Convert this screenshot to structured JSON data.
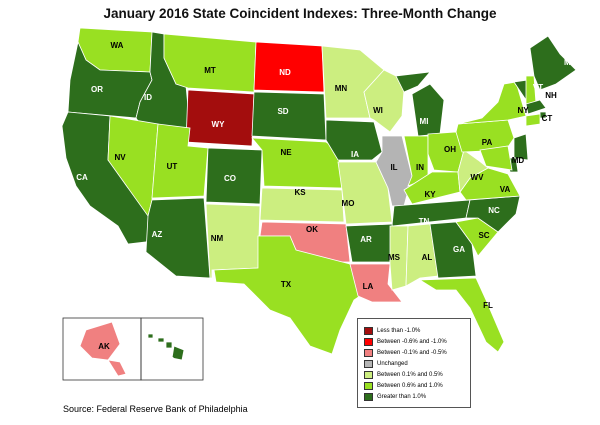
{
  "title": "January 2016 State Coincident Indexes: Three-Month Change",
  "source": "Source: Federal Reserve Bank of Philadelphia",
  "legend": [
    {
      "label": "Less than -1.0%",
      "color": "#a30d0d"
    },
    {
      "label": "Between -0.6% and -1.0%",
      "color": "#ff0000"
    },
    {
      "label": "Between -0.1% and -0.5%",
      "color": "#f08080"
    },
    {
      "label": "Unchanged",
      "color": "#b4b4b4"
    },
    {
      "label": "Between 0.1% and 0.5%",
      "color": "#ccee80"
    },
    {
      "label": "Between 0.6% and 1.0%",
      "color": "#99e022"
    },
    {
      "label": "Greater than 1.0%",
      "color": "#2d6e1c"
    }
  ],
  "states": [
    {
      "abbr": "WA",
      "class": "Between 0.6% and 1.0%"
    },
    {
      "abbr": "OR",
      "class": "Greater than 1.0%"
    },
    {
      "abbr": "CA",
      "class": "Greater than 1.0%"
    },
    {
      "abbr": "ID",
      "class": "Greater than 1.0%"
    },
    {
      "abbr": "NV",
      "class": "Between 0.6% and 1.0%"
    },
    {
      "abbr": "MT",
      "class": "Between 0.6% and 1.0%"
    },
    {
      "abbr": "WY",
      "class": "Less than -1.0%"
    },
    {
      "abbr": "UT",
      "class": "Between 0.6% and 1.0%"
    },
    {
      "abbr": "AZ",
      "class": "Greater than 1.0%"
    },
    {
      "abbr": "CO",
      "class": "Greater than 1.0%"
    },
    {
      "abbr": "NM",
      "class": "Between 0.1% and 0.5%"
    },
    {
      "abbr": "ND",
      "class": "Between -0.6% and -1.0%"
    },
    {
      "abbr": "SD",
      "class": "Greater than 1.0%"
    },
    {
      "abbr": "NE",
      "class": "Between 0.6% and 1.0%"
    },
    {
      "abbr": "KS",
      "class": "Between 0.1% and 0.5%"
    },
    {
      "abbr": "OK",
      "class": "Between -0.1% and -0.5%"
    },
    {
      "abbr": "TX",
      "class": "Between 0.6% and 1.0%"
    },
    {
      "abbr": "MN",
      "class": "Between 0.1% and 0.5%"
    },
    {
      "abbr": "IA",
      "class": "Greater than 1.0%"
    },
    {
      "abbr": "MO",
      "class": "Between 0.1% and 0.5%"
    },
    {
      "abbr": "AR",
      "class": "Greater than 1.0%"
    },
    {
      "abbr": "LA",
      "class": "Between -0.1% and -0.5%"
    },
    {
      "abbr": "WI",
      "class": "Between 0.1% and 0.5%"
    },
    {
      "abbr": "IL",
      "class": "Unchanged"
    },
    {
      "abbr": "MI",
      "class": "Greater than 1.0%"
    },
    {
      "abbr": "IN",
      "class": "Between 0.6% and 1.0%"
    },
    {
      "abbr": "OH",
      "class": "Between 0.6% and 1.0%"
    },
    {
      "abbr": "KY",
      "class": "Between 0.6% and 1.0%"
    },
    {
      "abbr": "TN",
      "class": "Greater than 1.0%"
    },
    {
      "abbr": "MS",
      "class": "Between 0.1% and 0.5%"
    },
    {
      "abbr": "AL",
      "class": "Between 0.1% and 0.5%"
    },
    {
      "abbr": "GA",
      "class": "Greater than 1.0%"
    },
    {
      "abbr": "FL",
      "class": "Between 0.6% and 1.0%"
    },
    {
      "abbr": "SC",
      "class": "Between 0.6% and 1.0%"
    },
    {
      "abbr": "NC",
      "class": "Greater than 1.0%"
    },
    {
      "abbr": "VA",
      "class": "Between 0.6% and 1.0%"
    },
    {
      "abbr": "WV",
      "class": "Between 0.1% and 0.5%"
    },
    {
      "abbr": "PA",
      "class": "Between 0.6% and 1.0%"
    },
    {
      "abbr": "NY",
      "class": "Between 0.6% and 1.0%"
    },
    {
      "abbr": "VT",
      "class": "Greater than 1.0%"
    },
    {
      "abbr": "NH",
      "class": "Between 0.6% and 1.0%"
    },
    {
      "abbr": "ME",
      "class": "Greater than 1.0%"
    },
    {
      "abbr": "MA",
      "class": "Greater than 1.0%"
    },
    {
      "abbr": "RI",
      "class": "Greater than 1.0%"
    },
    {
      "abbr": "CT",
      "class": "Between 0.6% and 1.0%"
    },
    {
      "abbr": "NJ",
      "class": "Greater than 1.0%"
    },
    {
      "abbr": "DE",
      "class": "Greater than 1.0%"
    },
    {
      "abbr": "MD",
      "class": "Between 0.6% and 1.0%"
    },
    {
      "abbr": "AK",
      "class": "Between -0.1% and -0.5%"
    },
    {
      "abbr": "HI",
      "class": "Greater than 1.0%"
    }
  ]
}
